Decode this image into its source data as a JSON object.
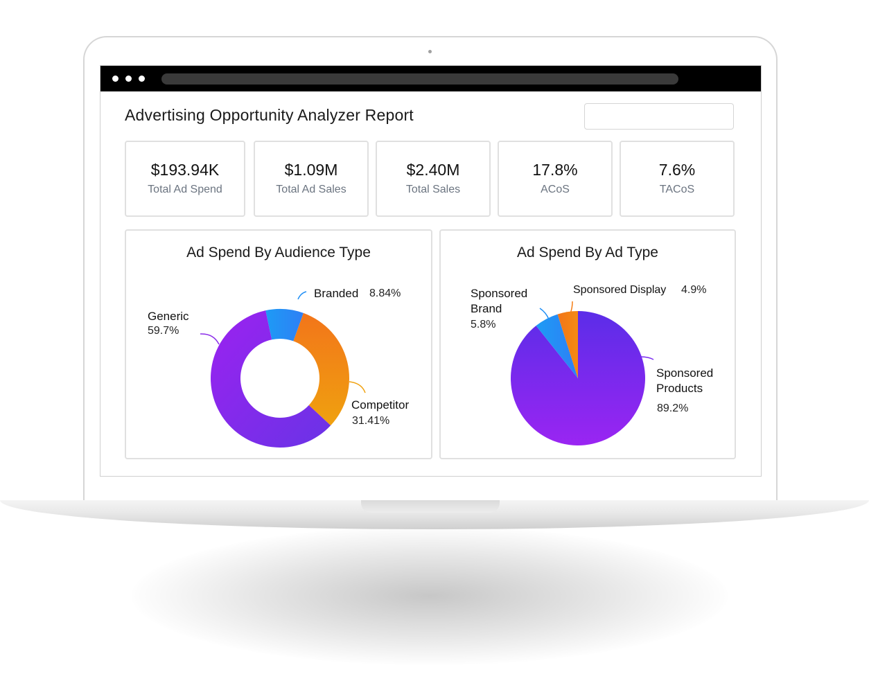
{
  "report": {
    "title": "Advertising Opportunity Analyzer Report"
  },
  "kpis": [
    {
      "value": "$193.94K",
      "label": "Total Ad Spend"
    },
    {
      "value": "$1.09M",
      "label": "Total Ad Sales"
    },
    {
      "value": "$2.40M",
      "label": "Total Sales"
    },
    {
      "value": "17.8%",
      "label": "ACoS"
    },
    {
      "value": "7.6%",
      "label": "TACoS"
    }
  ],
  "chart_data": [
    {
      "type": "pie",
      "variant": "donut",
      "title": "Ad Spend By Audience Type",
      "slices": [
        {
          "name": "Branded",
          "value": 8.84,
          "label": "8.84%",
          "color": "#1f8ef5"
        },
        {
          "name": "Competitor",
          "value": 31.41,
          "label": "31.41%",
          "color": "#f57c14"
        },
        {
          "name": "Generic",
          "value": 59.7,
          "label": "59.7%",
          "color": "#8a2be8"
        }
      ]
    },
    {
      "type": "pie",
      "title": "Ad Spend By Ad Type",
      "slices": [
        {
          "name": "Sponsored Products",
          "value": 89.2,
          "label": "89.2%",
          "color": "#7a2cf0"
        },
        {
          "name": "Sponsored Brand",
          "value": 5.8,
          "label": "5.8%",
          "color": "#1f8ef5"
        },
        {
          "name": "Sponsored Display",
          "value": 4.9,
          "label": "4.9%",
          "color": "#f57c14"
        }
      ]
    }
  ],
  "labels": {
    "audience": {
      "branded_name": "Branded",
      "branded_pct": "8.84%",
      "generic_name": "Generic",
      "generic_pct": "59.7%",
      "competitor_name": "Competitor",
      "competitor_pct": "31.41%"
    },
    "adtype": {
      "brand_line1": "Sponsored",
      "brand_line2": "Brand",
      "brand_pct": "5.8%",
      "display_name": "Sponsored Display",
      "display_pct": "4.9%",
      "products_line1": "Sponsored",
      "products_line2": "Products",
      "products_pct": "89.2%"
    }
  }
}
